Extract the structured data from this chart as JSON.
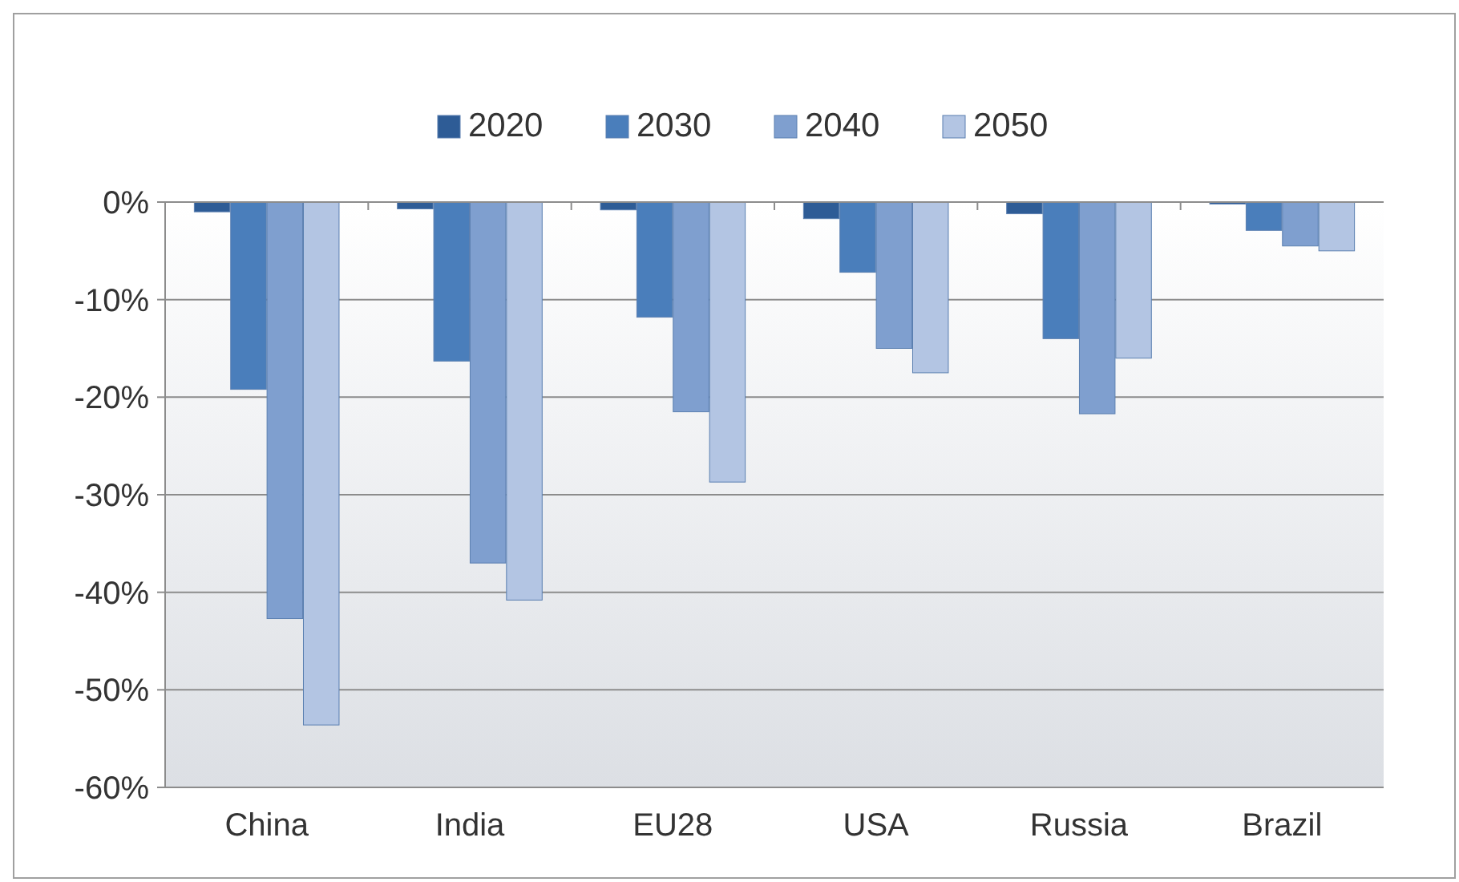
{
  "chart_data": {
    "type": "bar",
    "categories": [
      "China",
      "India",
      "EU28",
      "USA",
      "Russia",
      "Brazil"
    ],
    "series": [
      {
        "name": "2020",
        "color": "#2e5c96",
        "values": [
          -1,
          -0.7,
          -0.8,
          -1.7,
          -1.2,
          -0.2
        ]
      },
      {
        "name": "2030",
        "color": "#4a7ebb",
        "values": [
          -19.2,
          -16.3,
          -11.8,
          -7.2,
          -14,
          -2.9
        ]
      },
      {
        "name": "2040",
        "color": "#7f9fcf",
        "values": [
          -42.7,
          -37,
          -21.5,
          -15,
          -21.7,
          -4.5
        ]
      },
      {
        "name": "2050",
        "color": "#b3c5e3",
        "values": [
          -53.6,
          -40.8,
          -28.7,
          -17.5,
          -16,
          -5
        ]
      }
    ],
    "ylim": [
      -60,
      0
    ],
    "yticks": [
      {
        "value": -60,
        "label": "-60%"
      },
      {
        "value": -50,
        "label": "-50%"
      },
      {
        "value": -40,
        "label": "-40%"
      },
      {
        "value": -30,
        "label": "-30%"
      },
      {
        "value": -20,
        "label": "-20%"
      },
      {
        "value": -10,
        "label": "-10%"
      },
      {
        "value": 0,
        "label": "0%"
      }
    ],
    "grid": "y",
    "legend": "top"
  }
}
